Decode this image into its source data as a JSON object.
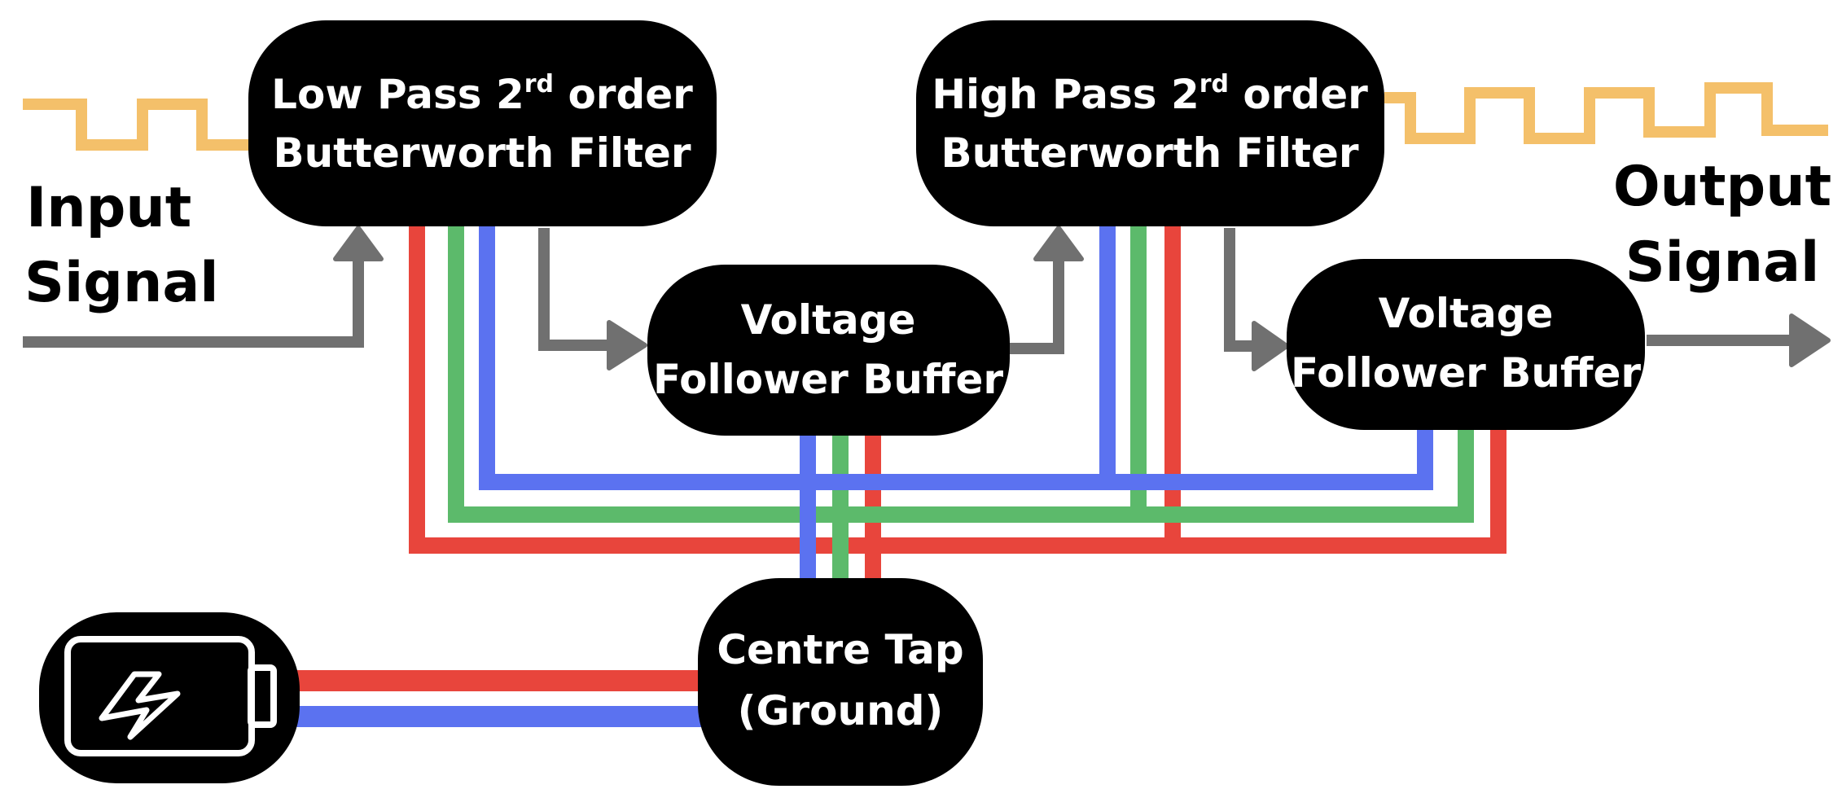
{
  "labels": {
    "input": [
      "Input",
      "Signal"
    ],
    "output": [
      "Output",
      "Signal"
    ]
  },
  "blocks": {
    "lowpass": {
      "line1_pre": "Low Pass 2",
      "line1_sup": "rd",
      "line1_post": " order",
      "line2": "Butterworth Filter"
    },
    "highpass": {
      "line1_pre": "High Pass 2",
      "line1_sup": "rd",
      "line1_post": " order",
      "line2": "Butterworth Filter"
    },
    "buffer1": {
      "line1": "Voltage",
      "line2": "Follower Buffer"
    },
    "buffer2": {
      "line1": "Voltage",
      "line2": "Follower Buffer"
    },
    "centretap": {
      "line1": "Centre Tap",
      "line2": "(Ground)"
    }
  },
  "colors": {
    "rail_positive": "#e8453c",
    "rail_ground": "#5cba6b",
    "rail_negative": "#5b72f0",
    "signal_arrow": "#707070",
    "square_wave": "#f4c06a",
    "block_fill": "#000000",
    "block_text": "#ffffff"
  },
  "icons": {
    "battery": "battery-charging-icon"
  }
}
